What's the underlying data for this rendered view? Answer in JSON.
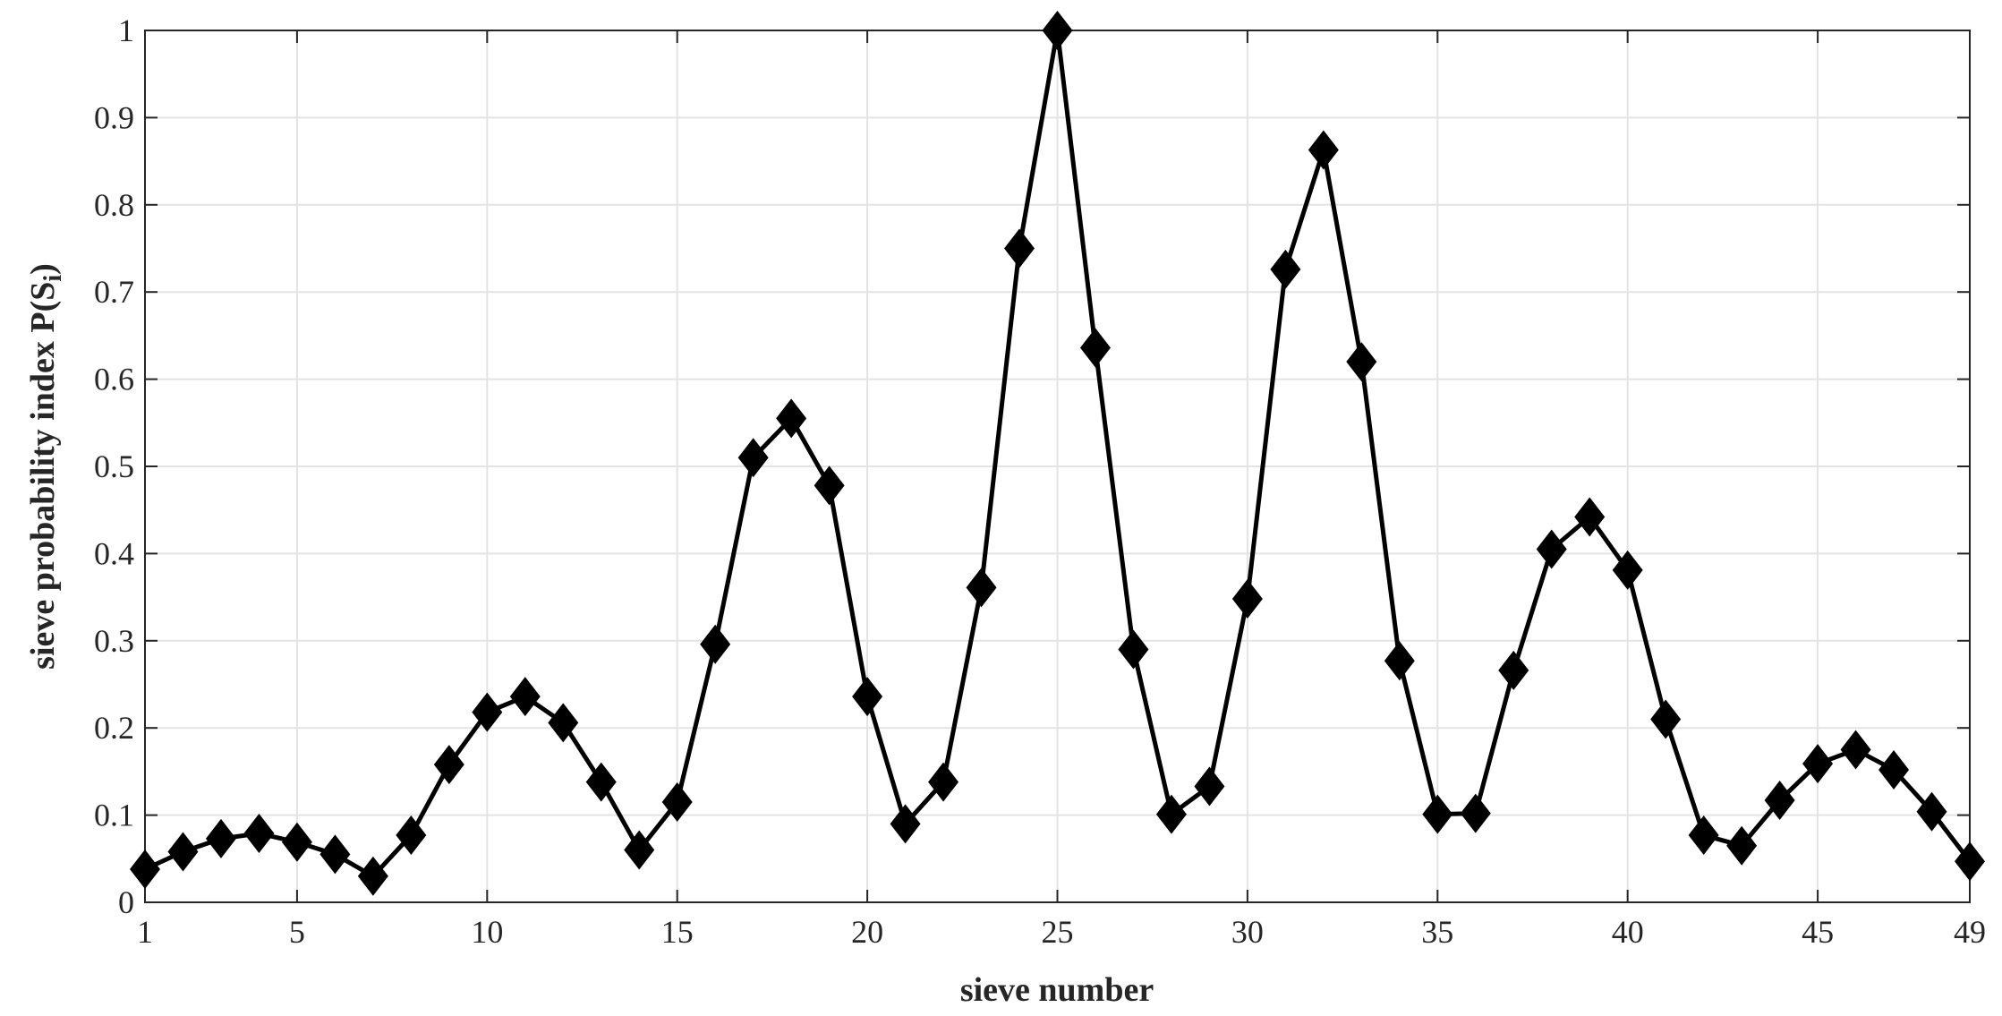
{
  "chart_data": {
    "type": "line",
    "title": "",
    "xlabel": "sieve number",
    "ylabel": "sieve probability index P(S",
    "ylabel_subscript": "i",
    "ylabel_suffix": ")",
    "xlim": [
      1,
      49
    ],
    "ylim": [
      0,
      1
    ],
    "xticks": [
      1,
      5,
      10,
      15,
      20,
      25,
      30,
      35,
      40,
      45,
      49
    ],
    "yticks": [
      0,
      0.1,
      0.2,
      0.3,
      0.4,
      0.5,
      0.6,
      0.7,
      0.8,
      0.9,
      1
    ],
    "ytick_labels": [
      "0",
      "0.1",
      "0.2",
      "0.3",
      "0.4",
      "0.5",
      "0.6",
      "0.7",
      "0.8",
      "0.9",
      "1"
    ],
    "grid": true,
    "marker": "diamond",
    "line_color": "#000000",
    "x": [
      1,
      2,
      3,
      4,
      5,
      6,
      7,
      8,
      9,
      10,
      11,
      12,
      13,
      14,
      15,
      16,
      17,
      18,
      19,
      20,
      21,
      22,
      23,
      24,
      25,
      26,
      27,
      28,
      29,
      30,
      31,
      32,
      33,
      34,
      35,
      36,
      37,
      38,
      39,
      40,
      41,
      42,
      43,
      44,
      45,
      46,
      47,
      48,
      49
    ],
    "y": [
      0.038,
      0.058,
      0.073,
      0.079,
      0.069,
      0.055,
      0.03,
      0.077,
      0.158,
      0.218,
      0.236,
      0.206,
      0.138,
      0.06,
      0.115,
      0.296,
      0.51,
      0.555,
      0.478,
      0.236,
      0.09,
      0.138,
      0.361,
      0.75,
      1.0,
      0.636,
      0.29,
      0.101,
      0.133,
      0.348,
      0.726,
      0.863,
      0.62,
      0.277,
      0.101,
      0.102,
      0.266,
      0.405,
      0.442,
      0.381,
      0.21,
      0.077,
      0.065,
      0.117,
      0.159,
      0.175,
      0.152,
      0.104,
      0.047
    ]
  }
}
